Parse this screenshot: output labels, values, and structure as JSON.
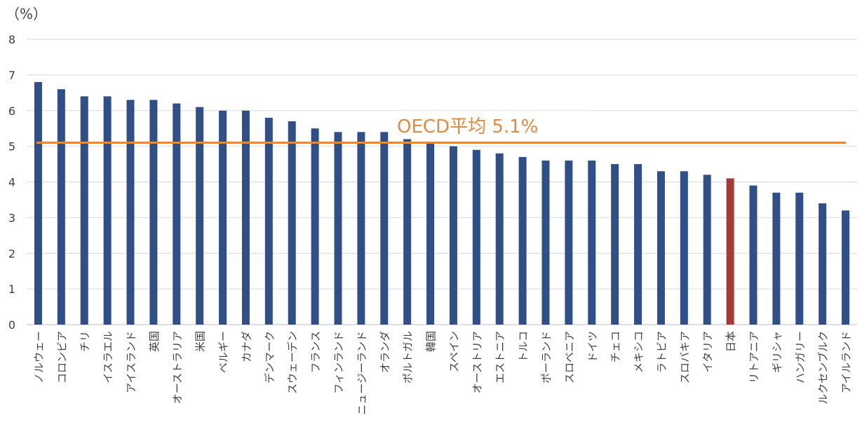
{
  "colors": {
    "bar": "#2f4f86",
    "highlight": "#a33a3a",
    "average_line": "#e28a3f",
    "grid": "#d9d9d9",
    "axis_text": "#404040"
  },
  "chart_data": {
    "type": "bar",
    "title": "",
    "xlabel": "",
    "ylabel": "",
    "y_unit": "（%）",
    "ylim": [
      0,
      8
    ],
    "yticks": [
      0,
      1,
      2,
      3,
      4,
      5,
      6,
      7,
      8
    ],
    "grid": true,
    "categories": [
      "ノルウェー",
      "コロンビア",
      "チリ",
      "イスラエル",
      "アイスランド",
      "英国",
      "オーストラリア",
      "米国",
      "ベルギー",
      "カナダ",
      "デンマーク",
      "スウェーデン",
      "フランス",
      "フィンランド",
      "ニュージーランド",
      "オランダ",
      "ポルトガル",
      "韓国",
      "スペイン",
      "オーストリア",
      "エストニア",
      "トルコ",
      "ポーランド",
      "スロベニア",
      "ドイツ",
      "チェコ",
      "メキシコ",
      "ラトビア",
      "スロバキア",
      "イタリア",
      "日本",
      "リトアニア",
      "ギリシャ",
      "ハンガリー",
      "ルクセンブルク",
      "アイルランド"
    ],
    "values": [
      6.8,
      6.6,
      6.4,
      6.4,
      6.3,
      6.3,
      6.2,
      6.1,
      6.0,
      6.0,
      5.8,
      5.7,
      5.5,
      5.4,
      5.4,
      5.4,
      5.2,
      5.1,
      5.0,
      4.9,
      4.8,
      4.7,
      4.6,
      4.6,
      4.6,
      4.5,
      4.5,
      4.3,
      4.3,
      4.2,
      4.1,
      3.9,
      3.7,
      3.7,
      3.4,
      3.2
    ],
    "highlight_category": "日本",
    "average": {
      "label": "OECD平均 5.1%",
      "value": 5.1
    }
  }
}
